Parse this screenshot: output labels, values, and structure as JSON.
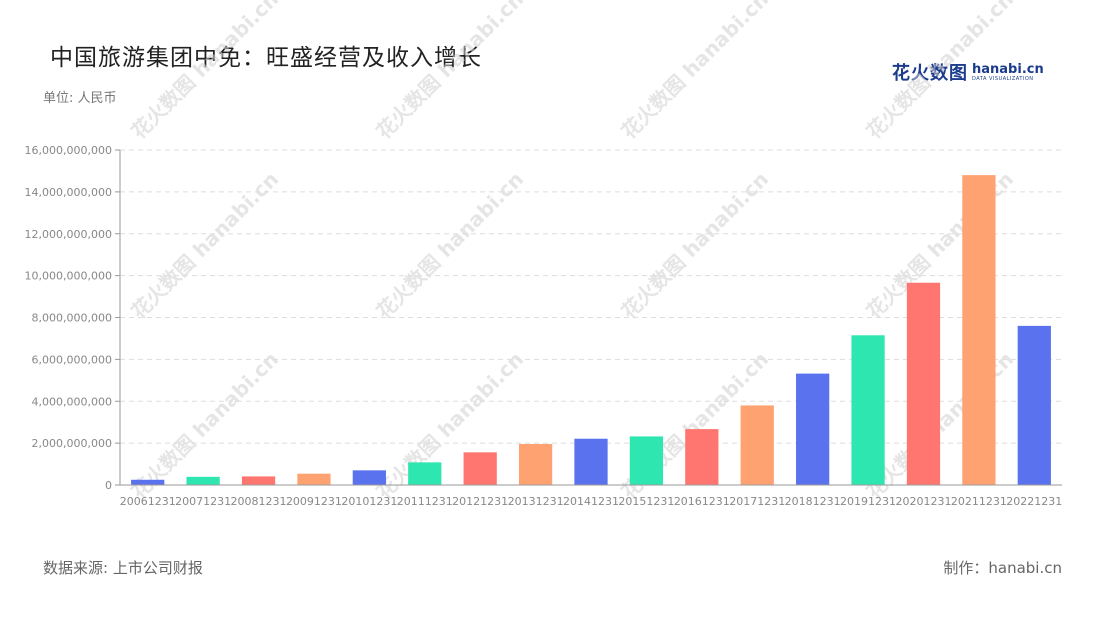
{
  "title": "中国旅游集团中免：旺盛经营及收入增长",
  "unit_label": "单位: 人民币",
  "logo": {
    "cn": "花火数图",
    "en": "hanabi.cn",
    "sub": "DATA VISUALIZATION"
  },
  "source": "数据来源: 上市公司财报",
  "credit": "制作：hanabi.cn",
  "watermark": "花火数图 hanabi.cn",
  "colors": {
    "blue": "#5a72ee",
    "green": "#2de6b0",
    "red": "#ff7570",
    "orange": "#ffa271",
    "grid": "#dddddd",
    "axis": "#999999",
    "tick": "#888888"
  },
  "chart_data": {
    "type": "bar",
    "categories": [
      "20061231",
      "20071231",
      "20081231",
      "20091231",
      "20101231",
      "20111231",
      "20121231",
      "20131231",
      "20141231",
      "20151231",
      "20161231",
      "20171231",
      "20181231",
      "20191231",
      "20201231",
      "20211231",
      "20221231"
    ],
    "values": [
      250000000,
      390000000,
      410000000,
      540000000,
      700000000,
      1080000000,
      1560000000,
      1960000000,
      2210000000,
      2320000000,
      2670000000,
      3800000000,
      5320000000,
      7150000000,
      9660000000,
      14800000000,
      7600000000
    ],
    "bar_colors": [
      "#5a72ee",
      "#2de6b0",
      "#ff7570",
      "#ffa271",
      "#5a72ee",
      "#2de6b0",
      "#ff7570",
      "#ffa271",
      "#5a72ee",
      "#2de6b0",
      "#ff7570",
      "#ffa271",
      "#5a72ee",
      "#2de6b0",
      "#ff7570",
      "#ffa271",
      "#5a72ee"
    ],
    "ylim": [
      0,
      16000000000
    ],
    "yticks": [
      0,
      2000000000,
      4000000000,
      6000000000,
      8000000000,
      10000000000,
      12000000000,
      14000000000,
      16000000000
    ],
    "ytick_labels": [
      "0",
      "2,000,000,000",
      "4,000,000,000",
      "6,000,000,000",
      "8,000,000,000",
      "10,000,000,000",
      "12,000,000,000",
      "14,000,000,000",
      "16,000,000,000"
    ],
    "grid": true,
    "legend": "none"
  }
}
